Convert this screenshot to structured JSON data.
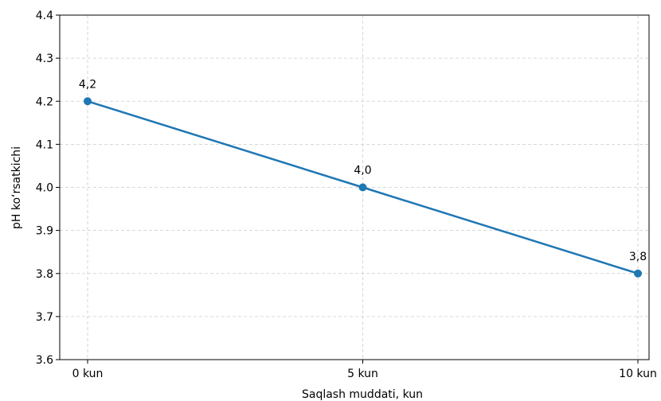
{
  "chart_data": {
    "type": "line",
    "x": [
      "0 kun",
      "5 kun",
      "10 kun"
    ],
    "x_values": [
      0,
      5,
      10
    ],
    "series": [
      {
        "values": [
          4.2,
          4.0,
          3.8
        ],
        "data_labels": [
          "4,2",
          "4,0",
          "3,8"
        ],
        "color": "#1f77b4"
      }
    ],
    "xlabel": "Saqlash muddati, kun",
    "ylabel": "pH ko‘rsatkichi",
    "xlim": [
      0,
      10
    ],
    "ylim": [
      3.6,
      4.4
    ],
    "yticks": [
      3.6,
      3.7,
      3.8,
      3.9,
      4.0,
      4.1,
      4.2,
      4.3,
      4.4
    ],
    "ytick_labels": [
      "3.6",
      "3.7",
      "3.8",
      "3.9",
      "4.0",
      "4.1",
      "4.2",
      "4.3",
      "4.4"
    ],
    "grid": true,
    "grid_style": "dashed"
  }
}
